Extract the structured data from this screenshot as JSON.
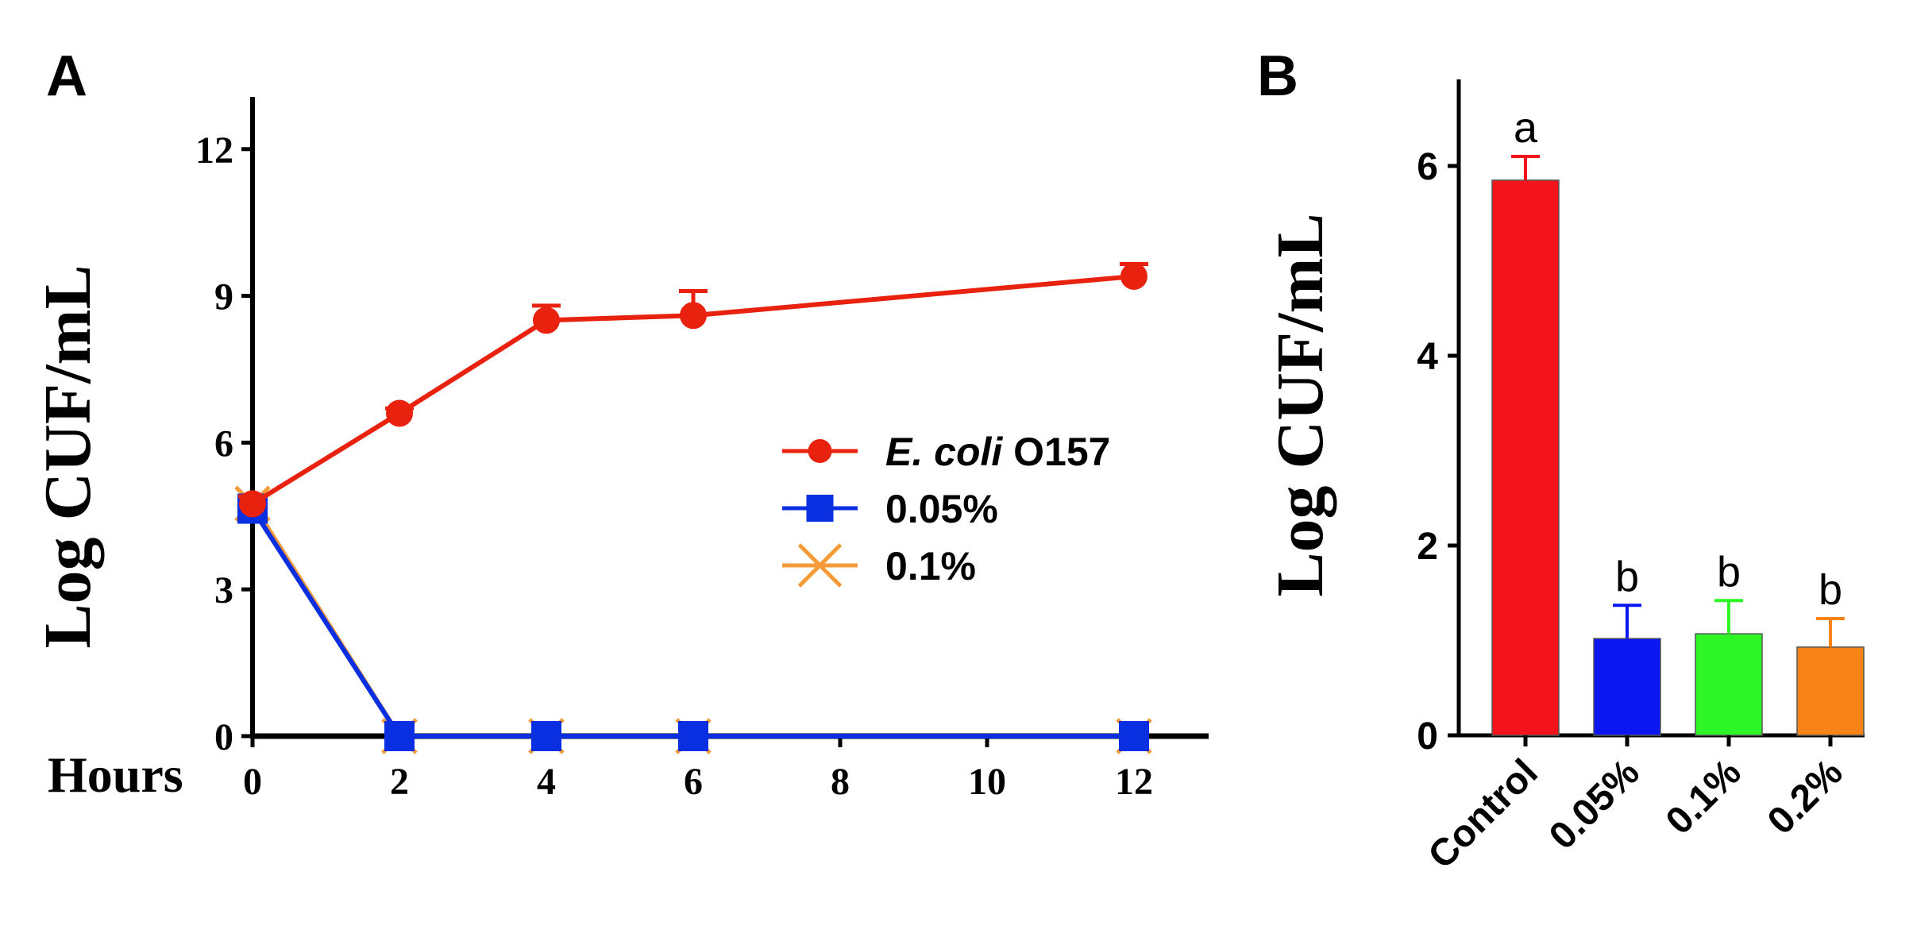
{
  "chart_data": [
    {
      "panel": "A",
      "type": "line",
      "title": "",
      "xlabel": "Hours",
      "ylabel": "Log CUF/mL",
      "x_ticks": [
        0,
        2,
        4,
        6,
        8,
        10,
        12
      ],
      "y_ticks": [
        0,
        3,
        6,
        9,
        12
      ],
      "xlim": [
        0,
        13
      ],
      "ylim": [
        0,
        13
      ],
      "series": [
        {
          "name": "E. coli O157",
          "name_italic": "E. coli",
          "name_rest": " O157",
          "color": "#e8220e",
          "marker": "circle",
          "x": [
            0,
            2,
            4,
            6,
            12
          ],
          "values": [
            4.75,
            6.6,
            8.5,
            8.6,
            9.4
          ],
          "errors": [
            0.15,
            0.1,
            0.3,
            0.5,
            0.25
          ]
        },
        {
          "name": "0.05%",
          "color": "#0a2fe0",
          "marker": "square",
          "x": [
            0,
            2,
            4,
            6,
            12
          ],
          "values": [
            4.65,
            0,
            0,
            0,
            0
          ],
          "errors": [
            0,
            0,
            0,
            0,
            0
          ]
        },
        {
          "name": "0.1%",
          "color": "#f49a37",
          "marker": "x",
          "x": [
            0,
            2,
            4,
            6,
            12
          ],
          "values": [
            4.75,
            0,
            0,
            0,
            0
          ],
          "errors": [
            0,
            0,
            0,
            0,
            0
          ]
        }
      ],
      "legend_position": "center-right"
    },
    {
      "panel": "B",
      "type": "bar",
      "title": "",
      "xlabel": "",
      "ylabel": "Log CUF/mL",
      "categories": [
        "Control",
        "0.05%",
        "0.1%",
        "0.2%"
      ],
      "values": [
        5.85,
        1.02,
        1.07,
        0.93
      ],
      "errors": [
        0.25,
        0.35,
        0.35,
        0.3
      ],
      "significance": [
        "a",
        "b",
        "b",
        "b"
      ],
      "colors": [
        "#f3141b",
        "#0a17f2",
        "#2ef526",
        "#f88317"
      ],
      "y_ticks": [
        0,
        2,
        4,
        6
      ],
      "ylim": [
        0,
        7
      ]
    }
  ]
}
